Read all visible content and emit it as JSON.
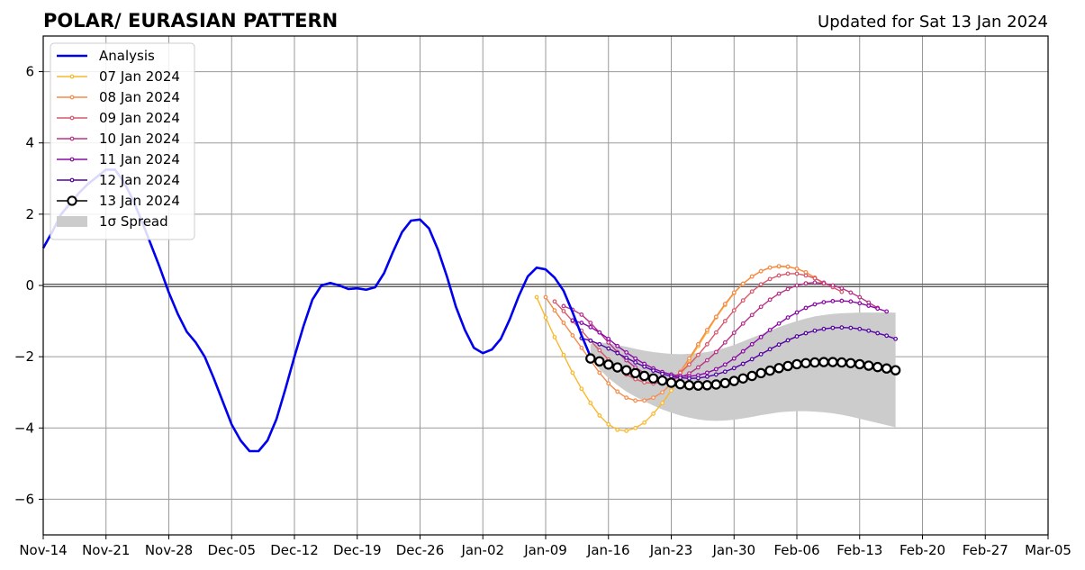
{
  "chart_data": {
    "type": "line",
    "title": "POLAR/ EURASIAN  PATTERN",
    "subtitle": "Updated for Sat 13 Jan 2024",
    "xlabel": "",
    "ylabel": "",
    "x_range_days": [
      0,
      112
    ],
    "x_ticks": [
      {
        "day": 0,
        "label": "Nov-14"
      },
      {
        "day": 7,
        "label": "Nov-21"
      },
      {
        "day": 14,
        "label": "Nov-28"
      },
      {
        "day": 21,
        "label": "Dec-05"
      },
      {
        "day": 28,
        "label": "Dec-12"
      },
      {
        "day": 35,
        "label": "Dec-19"
      },
      {
        "day": 42,
        "label": "Dec-26"
      },
      {
        "day": 49,
        "label": "Jan-02"
      },
      {
        "day": 56,
        "label": "Jan-09"
      },
      {
        "day": 63,
        "label": "Jan-16"
      },
      {
        "day": 70,
        "label": "Jan-23"
      },
      {
        "day": 77,
        "label": "Jan-30"
      },
      {
        "day": 84,
        "label": "Feb-06"
      },
      {
        "day": 91,
        "label": "Feb-13"
      },
      {
        "day": 98,
        "label": "Feb-20"
      },
      {
        "day": 105,
        "label": "Feb-27"
      },
      {
        "day": 112,
        "label": "Mar-05"
      }
    ],
    "ylim": [
      -7,
      7
    ],
    "y_ticks": [
      {
        "value": 6,
        "label": "6"
      },
      {
        "value": 4,
        "label": "4"
      },
      {
        "value": 2,
        "label": "2"
      },
      {
        "value": 0,
        "label": "0"
      },
      {
        "value": -2,
        "label": "−2"
      },
      {
        "value": -4,
        "label": "−4"
      },
      {
        "value": -6,
        "label": "−6"
      }
    ],
    "grid": true,
    "legend_position": "top-left",
    "analysis": {
      "name": "Analysis",
      "color": "#0000ee",
      "start_day": 0,
      "values": [
        1.05,
        1.5,
        2.0,
        2.3,
        2.6,
        2.85,
        3.05,
        3.25,
        3.25,
        2.9,
        2.4,
        1.8,
        1.15,
        0.5,
        -0.2,
        -0.8,
        -1.3,
        -1.6,
        -2.0,
        -2.6,
        -3.25,
        -3.9,
        -4.35,
        -4.65,
        -4.65,
        -4.35,
        -3.75,
        -2.9,
        -2.0,
        -1.15,
        -0.4,
        0.0,
        0.07,
        0.0,
        -0.1,
        -0.08,
        -0.12,
        -0.05,
        0.35,
        0.95,
        1.5,
        1.82,
        1.85,
        1.6,
        1.0,
        0.25,
        -0.6,
        -1.25,
        -1.75,
        -1.9,
        -1.8,
        -1.5,
        -0.95,
        -0.3,
        0.25,
        0.5,
        0.45,
        0.22,
        -0.15,
        -0.75,
        -1.4,
        -2.0
      ]
    },
    "forecasts": [
      {
        "name": "07 Jan 2024",
        "color": "#f9b82d",
        "start_day": 55,
        "values": [
          -0.33,
          -0.9,
          -1.45,
          -1.95,
          -2.45,
          -2.9,
          -3.3,
          -3.65,
          -3.9,
          -4.05,
          -4.08,
          -4.0,
          -3.85,
          -3.6,
          -3.3,
          -2.95,
          -2.55,
          -2.1,
          -1.7,
          -1.3,
          -0.9,
          -0.55,
          -0.22,
          0.05,
          0.25,
          0.4,
          0.5,
          0.53,
          0.52,
          0.47,
          0.37,
          0.22,
          0.05
        ]
      },
      {
        "name": "08 Jan 2024",
        "color": "#f58b4c",
        "start_day": 56,
        "values": [
          -0.33,
          -0.7,
          -1.05,
          -1.4,
          -1.75,
          -2.1,
          -2.45,
          -2.75,
          -2.98,
          -3.15,
          -3.23,
          -3.23,
          -3.15,
          -3.0,
          -2.75,
          -2.42,
          -2.05,
          -1.65,
          -1.25,
          -0.88,
          -0.52,
          -0.2,
          0.05,
          0.25,
          0.4,
          0.5,
          0.54,
          0.53,
          0.47,
          0.37,
          0.22,
          0.05
        ]
      },
      {
        "name": "09 Jan 2024",
        "color": "#d8576b",
        "start_day": 57,
        "values": [
          -0.45,
          -0.72,
          -1.0,
          -1.27,
          -1.55,
          -1.82,
          -2.08,
          -2.3,
          -2.5,
          -2.63,
          -2.72,
          -2.75,
          -2.72,
          -2.62,
          -2.45,
          -2.22,
          -1.95,
          -1.65,
          -1.32,
          -1.0,
          -0.7,
          -0.42,
          -0.17,
          0.03,
          0.18,
          0.28,
          0.33,
          0.33,
          0.28,
          0.2,
          0.08,
          -0.05,
          -0.18
        ]
      },
      {
        "name": "10 Jan 2024",
        "color": "#b83289",
        "start_day": 58,
        "values": [
          -0.58,
          -0.68,
          -0.82,
          -1.05,
          -1.32,
          -1.6,
          -1.87,
          -2.1,
          -2.3,
          -2.46,
          -2.56,
          -2.62,
          -2.63,
          -2.58,
          -2.47,
          -2.3,
          -2.1,
          -1.87,
          -1.6,
          -1.33,
          -1.07,
          -0.83,
          -0.6,
          -0.4,
          -0.23,
          -0.1,
          0.0,
          0.06,
          0.08,
          0.06,
          0.0,
          -0.08,
          -0.2,
          -0.33,
          -0.48,
          -0.63
        ]
      },
      {
        "name": "11 Jan 2024",
        "color": "#8b0aa5",
        "start_day": 59,
        "values": [
          -0.98,
          -1.05,
          -1.17,
          -1.32,
          -1.5,
          -1.7,
          -1.88,
          -2.05,
          -2.2,
          -2.33,
          -2.43,
          -2.5,
          -2.54,
          -2.55,
          -2.52,
          -2.45,
          -2.35,
          -2.22,
          -2.05,
          -1.85,
          -1.65,
          -1.45,
          -1.25,
          -1.07,
          -0.9,
          -0.76,
          -0.63,
          -0.53,
          -0.47,
          -0.44,
          -0.43,
          -0.45,
          -0.5,
          -0.57,
          -0.65,
          -0.73
        ]
      },
      {
        "name": "12 Jan 2024",
        "color": "#5402a3",
        "start_day": 60,
        "values": [
          -1.48,
          -1.55,
          -1.65,
          -1.77,
          -1.9,
          -2.03,
          -2.16,
          -2.28,
          -2.39,
          -2.48,
          -2.55,
          -2.59,
          -2.61,
          -2.6,
          -2.56,
          -2.5,
          -2.42,
          -2.32,
          -2.2,
          -2.07,
          -1.93,
          -1.79,
          -1.66,
          -1.54,
          -1.43,
          -1.34,
          -1.27,
          -1.22,
          -1.19,
          -1.18,
          -1.19,
          -1.22,
          -1.27,
          -1.34,
          -1.41,
          -1.5
        ]
      }
    ],
    "current": {
      "name": "13 Jan 2024",
      "color": "#000000",
      "start_day": 61,
      "values": [
        -2.05,
        -2.13,
        -2.22,
        -2.3,
        -2.38,
        -2.46,
        -2.54,
        -2.61,
        -2.67,
        -2.73,
        -2.77,
        -2.8,
        -2.81,
        -2.8,
        -2.78,
        -2.74,
        -2.68,
        -2.61,
        -2.54,
        -2.46,
        -2.39,
        -2.32,
        -2.26,
        -2.21,
        -2.18,
        -2.16,
        -2.15,
        -2.15,
        -2.16,
        -2.18,
        -2.21,
        -2.25,
        -2.29,
        -2.33,
        -2.38
      ]
    },
    "spread": {
      "name": "1σ Spread",
      "color": "#cccccc",
      "start_day": 61,
      "upper": [
        -1.65,
        -1.6,
        -1.62,
        -1.67,
        -1.72,
        -1.78,
        -1.83,
        -1.87,
        -1.9,
        -1.92,
        -1.93,
        -1.92,
        -1.9,
        -1.87,
        -1.82,
        -1.75,
        -1.67,
        -1.57,
        -1.47,
        -1.37,
        -1.27,
        -1.17,
        -1.08,
        -1.0,
        -0.93,
        -0.87,
        -0.83,
        -0.8,
        -0.78,
        -0.77,
        -0.76,
        -0.76,
        -0.76,
        -0.76,
        -0.76
      ],
      "lower": [
        -2.05,
        -2.35,
        -2.6,
        -2.8,
        -2.98,
        -3.12,
        -3.25,
        -3.37,
        -3.48,
        -3.57,
        -3.65,
        -3.71,
        -3.76,
        -3.79,
        -3.8,
        -3.79,
        -3.77,
        -3.73,
        -3.69,
        -3.64,
        -3.6,
        -3.56,
        -3.54,
        -3.53,
        -3.53,
        -3.54,
        -3.56,
        -3.59,
        -3.63,
        -3.68,
        -3.74,
        -3.8,
        -3.86,
        -3.92,
        -3.98
      ]
    },
    "legend": [
      "Analysis",
      "07 Jan 2024",
      "08 Jan 2024",
      "09 Jan 2024",
      "10 Jan 2024",
      "11 Jan 2024",
      "12 Jan 2024",
      "13 Jan 2024",
      "1σ Spread"
    ]
  }
}
